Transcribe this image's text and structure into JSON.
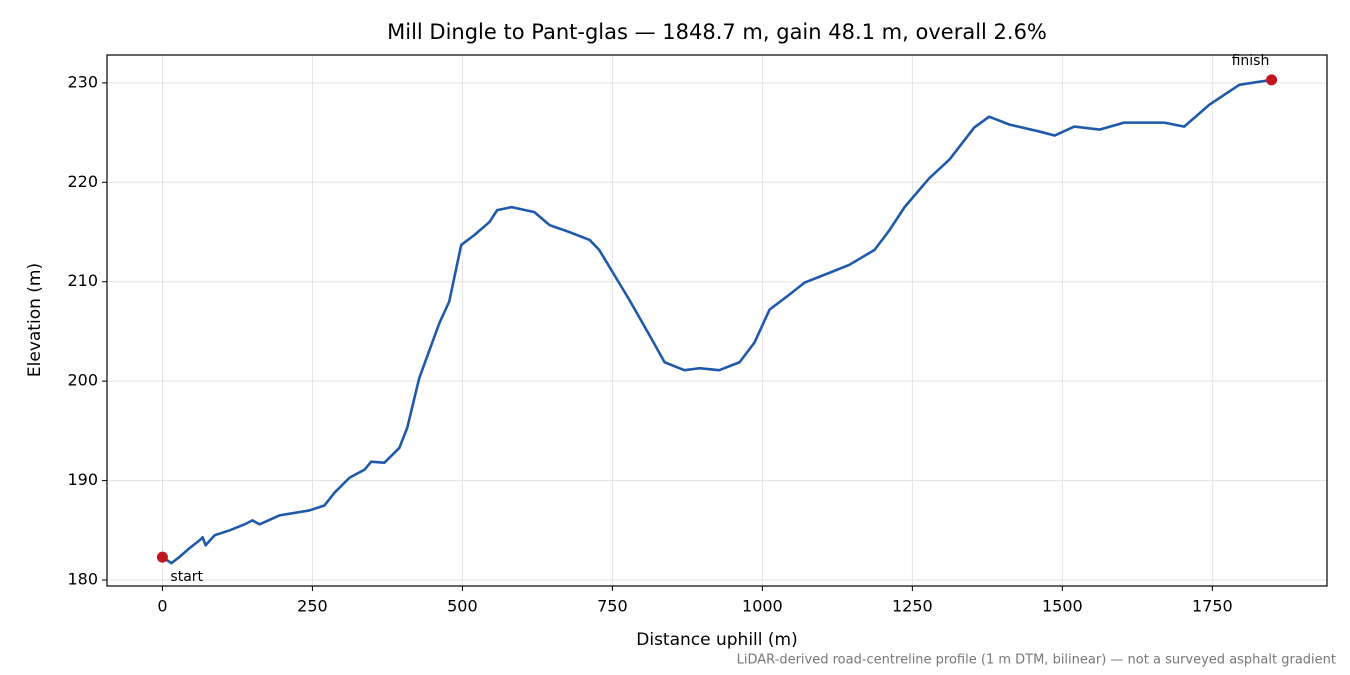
{
  "chart_data": {
    "type": "line",
    "title": "Mill Dingle to Pant-glas — 1848.7 m, gain 48.1 m, overall 2.6%",
    "x_label": "Distance uphill (m)",
    "y_label": "Elevation (m)",
    "footnote": "LiDAR-derived road-centreline profile (1 m DTM, bilinear) — not a surveyed asphalt gradient",
    "xlim": [
      -92.4,
      1941.1
    ],
    "ylim": [
      179.4,
      232.8
    ],
    "xticks": [
      0,
      250,
      500,
      750,
      1000,
      1250,
      1500,
      1750
    ],
    "yticks": [
      180,
      190,
      200,
      210,
      220,
      230
    ],
    "grid": true,
    "series": [
      {
        "color": "#1f5aaa",
        "x": [
          0,
          15,
          28,
          45,
          62,
          67,
          72,
          87,
          112,
          137,
          150,
          162,
          195,
          245,
          270,
          287,
          312,
          337,
          348,
          370,
          395,
          408,
          420,
          428,
          445,
          462,
          478,
          498,
          520,
          545,
          558,
          582,
          620,
          645,
          678,
          712,
          728,
          753,
          778,
          812,
          837,
          870,
          895,
          928,
          962,
          987,
          1012,
          1045,
          1070,
          1112,
          1145,
          1187,
          1212,
          1237,
          1278,
          1312,
          1353,
          1378,
          1412,
          1462,
          1487,
          1520,
          1562,
          1603,
          1670,
          1703,
          1745,
          1795,
          1848.7
        ],
        "values": [
          182.3,
          181.7,
          182.3,
          183.2,
          184.0,
          184.3,
          183.5,
          184.5,
          185.0,
          185.6,
          186.0,
          185.6,
          186.5,
          187.0,
          187.5,
          188.8,
          190.3,
          191.1,
          191.9,
          191.8,
          193.3,
          195.3,
          198.3,
          200.3,
          203.1,
          205.9,
          208.0,
          213.7,
          214.7,
          216.0,
          217.2,
          217.5,
          217.0,
          215.7,
          215.0,
          214.2,
          213.2,
          210.7,
          208.2,
          204.6,
          201.9,
          201.1,
          201.3,
          201.1,
          201.9,
          203.9,
          207.2,
          208.7,
          209.9,
          210.9,
          211.7,
          213.2,
          215.2,
          217.5,
          220.4,
          222.3,
          225.5,
          226.6,
          225.8,
          225.1,
          224.7,
          225.6,
          225.3,
          226.0,
          226.0,
          225.6,
          227.8,
          229.8,
          230.3
        ]
      }
    ],
    "markers": [
      {
        "label": "start",
        "x": 0,
        "y": 182.3,
        "color": "#c0161f"
      },
      {
        "label": "finish",
        "x": 1848.7,
        "y": 230.3,
        "color": "#c0161f"
      }
    ]
  }
}
